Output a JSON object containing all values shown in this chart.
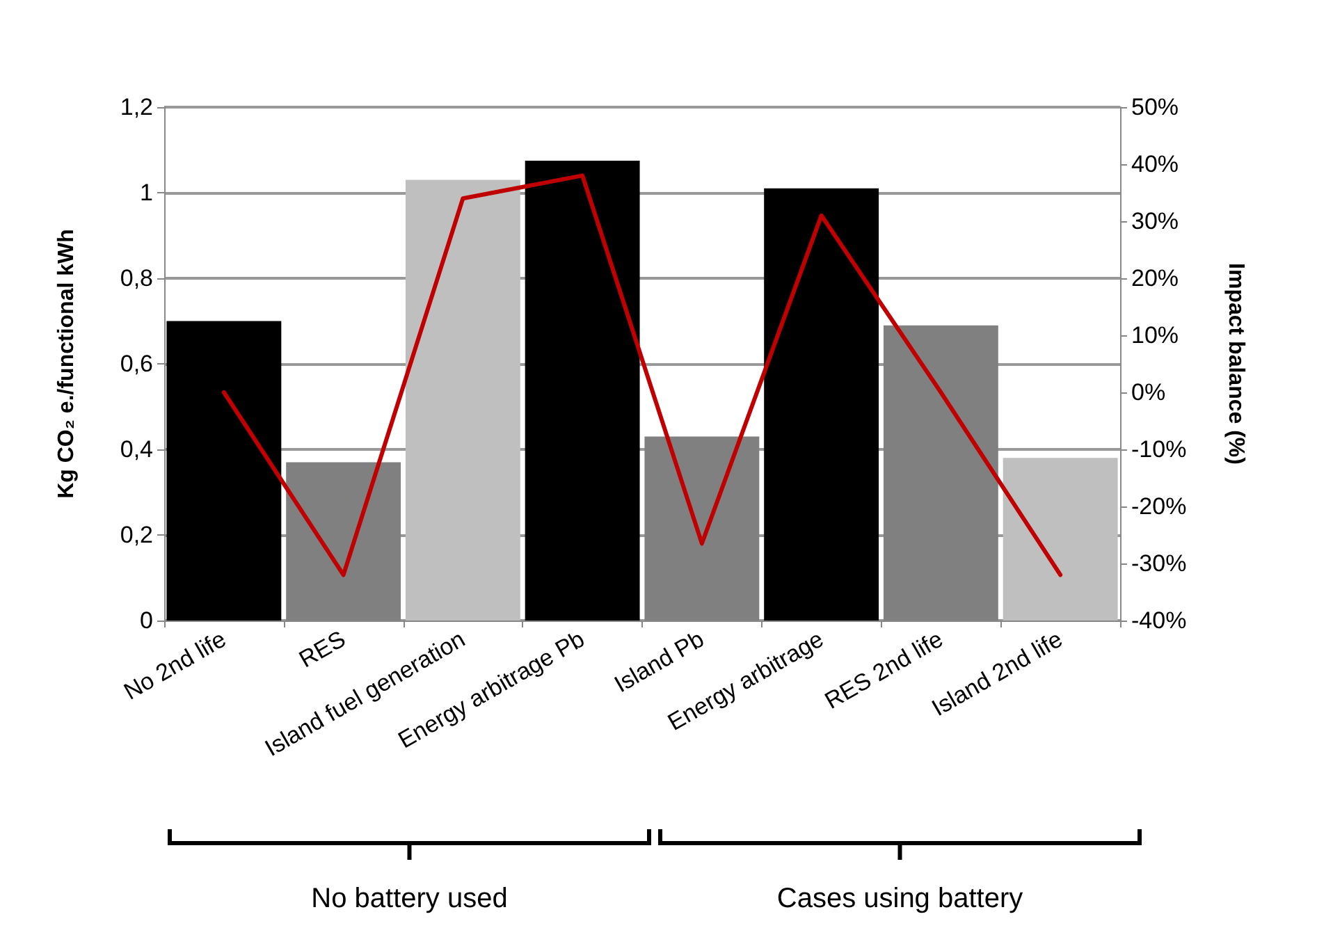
{
  "chart_data": {
    "type": "bar",
    "ylabel": "Kg CO₂ e./functional kWh",
    "y2label": "Impact balance (%)",
    "categories": [
      "No 2nd life",
      "RES",
      "Island fuel generation",
      "Energy arbitrage Pb",
      "Island Pb",
      "Energy arbitrage",
      "RES 2nd life",
      "Island 2nd life"
    ],
    "series": [
      {
        "colors": [
          "#000000",
          "#808080",
          "#bfbfbf",
          "#000000",
          "#808080",
          "#000000",
          "#808080",
          "#bfbfbf"
        ],
        "values": [
          0.7,
          0.37,
          1.03,
          1.075,
          0.43,
          1.01,
          0.69,
          0.38
        ]
      },
      {
        "type": "line",
        "axis": "y2",
        "color": "#c00000",
        "values": [
          0,
          -32,
          34,
          38,
          -26.5,
          31,
          0,
          -32
        ]
      }
    ],
    "ylim": [
      0,
      1.2
    ],
    "yticks": [
      0,
      {
        "value": 0.2,
        "label": "0,2"
      },
      {
        "value": 0.4,
        "label": "0,4"
      },
      {
        "value": 0.6,
        "label": "0,6"
      },
      {
        "value": 0.8,
        "label": "0,8"
      },
      1,
      {
        "value": 1.2,
        "label": "1,2"
      }
    ],
    "y2lim": [
      -40,
      50
    ],
    "y2ticks": [
      {
        "value": -40,
        "label": "-40%"
      },
      {
        "value": -30,
        "label": "-30%"
      },
      {
        "value": -20,
        "label": "-20%"
      },
      {
        "value": -10,
        "label": "-10%"
      },
      {
        "value": 0,
        "label": "0%"
      },
      {
        "value": 10,
        "label": "10%"
      },
      {
        "value": 20,
        "label": "20%"
      },
      {
        "value": 30,
        "label": "30%"
      },
      {
        "value": 40,
        "label": "40%"
      },
      {
        "value": 50,
        "label": "50%"
      }
    ],
    "grid": "y",
    "marker": "none",
    "line_style": "solid",
    "annotations": [
      "No battery used",
      "Cases using battery"
    ]
  }
}
